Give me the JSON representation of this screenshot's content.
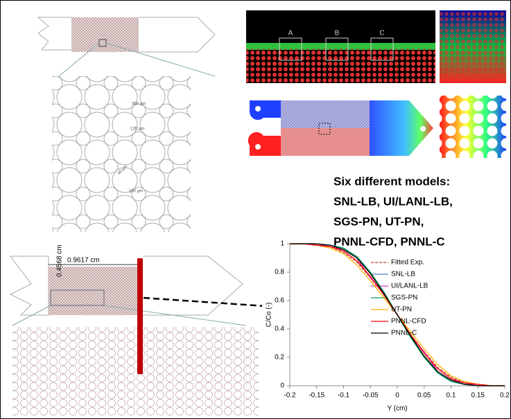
{
  "figure": {
    "labels": {
      "dim1": "300 µm",
      "dim2": "135 µm",
      "dim3": "40 µm",
      "dim4": "180 µm",
      "width": "0.9617 cm",
      "height": "0.4568 cm",
      "boxA": "A",
      "boxB": "B",
      "boxC": "C"
    }
  },
  "chart_data": {
    "type": "line",
    "annotation": [
      "Six different models:",
      "SNL-LB, UI/LANL-LB,",
      "SGS-PN, UT-PN,",
      "PNNL-CFD, PNNL-C"
    ],
    "xlabel": "Y (cm)",
    "ylabel": "C/Co (-)",
    "x": [
      -0.2,
      -0.175,
      -0.15,
      -0.125,
      -0.1,
      -0.075,
      -0.05,
      -0.025,
      0,
      0.025,
      0.05,
      0.075,
      0.1,
      0.125,
      0.15,
      0.175,
      0.2
    ],
    "series": [
      {
        "name": "Fitted Exp.",
        "color": "#c0392b",
        "dashed": true,
        "values": [
          1.0,
          1.0,
          0.99,
          0.98,
          0.94,
          0.87,
          0.76,
          0.64,
          0.5,
          0.36,
          0.24,
          0.13,
          0.06,
          0.02,
          0.01,
          0.0,
          0.0
        ]
      },
      {
        "name": "SNL-LB",
        "color": "#4f81bd",
        "dashed": false,
        "values": [
          1.0,
          1.0,
          1.0,
          0.99,
          0.97,
          0.9,
          0.8,
          0.66,
          0.5,
          0.34,
          0.2,
          0.1,
          0.03,
          0.01,
          0.0,
          0.0,
          0.0
        ]
      },
      {
        "name": "UI/LANL-LB",
        "color": "#cc33cc",
        "dashed": false,
        "values": [
          1.0,
          1.0,
          1.0,
          0.98,
          0.96,
          0.9,
          0.76,
          0.65,
          0.5,
          0.35,
          0.24,
          0.1,
          0.04,
          0.02,
          0.0,
          0.0,
          0.0
        ]
      },
      {
        "name": "SGS-PN",
        "color": "#00a050",
        "dashed": false,
        "values": [
          1.0,
          1.0,
          1.0,
          0.99,
          0.97,
          0.91,
          0.8,
          0.66,
          0.5,
          0.34,
          0.2,
          0.09,
          0.03,
          0.01,
          0.0,
          0.0,
          0.0
        ]
      },
      {
        "name": "UT-PN",
        "color": "#ffb000",
        "dashed": false,
        "values": [
          1.0,
          1.0,
          0.99,
          0.97,
          0.93,
          0.85,
          0.74,
          0.62,
          0.5,
          0.38,
          0.26,
          0.15,
          0.07,
          0.03,
          0.01,
          0.0,
          0.0
        ]
      },
      {
        "name": "PNNL-CFD",
        "color": "#ff0000",
        "dashed": false,
        "values": [
          1.0,
          1.0,
          0.99,
          0.98,
          0.95,
          0.88,
          0.77,
          0.64,
          0.5,
          0.36,
          0.23,
          0.12,
          0.05,
          0.02,
          0.01,
          0.0,
          0.0
        ]
      },
      {
        "name": "PNNL-C",
        "color": "#000000",
        "dashed": false,
        "values": [
          1.0,
          1.0,
          1.0,
          0.99,
          0.96,
          0.9,
          0.79,
          0.65,
          0.5,
          0.35,
          0.21,
          0.1,
          0.04,
          0.01,
          0.0,
          0.0,
          0.0
        ]
      }
    ],
    "xlim": [
      -0.2,
      0.2
    ],
    "xticks": [
      -0.2,
      -0.15,
      -0.1,
      -0.05,
      0,
      0.05,
      0.1,
      0.15,
      0.2
    ],
    "ylim": [
      0,
      1
    ],
    "yticks": [
      0,
      0.2,
      0.4,
      0.6,
      0.8,
      1
    ]
  }
}
